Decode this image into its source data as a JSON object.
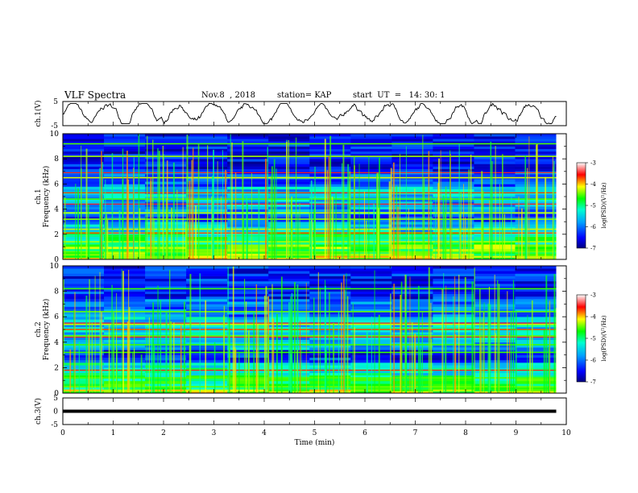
{
  "header": {
    "title": "VLF Spectra",
    "date": "Nov.8  , 2018",
    "station": "station= KAP",
    "start": "start  UT  =   14: 30: 1"
  },
  "chart_data": [
    {
      "type": "line",
      "panel": "ch1-waveform",
      "ylabel": "ch.1(V)",
      "ylim": [
        -5,
        5
      ],
      "y_ticklabels": [
        "5",
        "-5"
      ],
      "xlim": [
        0,
        10
      ],
      "x_extent": 9.8,
      "color": "#000000",
      "series_summary": "noisy waveform oscillating about 0 V with amplitude ~2-3 V"
    },
    {
      "type": "heatmap",
      "panel": "ch1-spectrogram",
      "ylabel": "ch.1\nFrequency (kHz)",
      "ylim": [
        0,
        10
      ],
      "y_ticklabels": [
        "0",
        "2",
        "4",
        "6",
        "8",
        "10"
      ],
      "xlim": [
        0,
        10
      ],
      "x_extent": 9.8,
      "colorbar": {
        "label": "log(PSD)(V²/Hz)",
        "range": [
          -7,
          -3
        ],
        "ticklabels": [
          "-3",
          "-4",
          "-5",
          "-6",
          "-7"
        ]
      },
      "bands": [
        {
          "f": [
            0.0,
            0.3
          ],
          "logpsd": -4.3
        },
        {
          "f": [
            0.3,
            1.2
          ],
          "logpsd": -4.6
        },
        {
          "f": [
            1.2,
            2.2
          ],
          "logpsd": -5.0
        },
        {
          "f": [
            2.2,
            3.0
          ],
          "logpsd": -5.6
        },
        {
          "f": [
            3.0,
            3.6
          ],
          "logpsd": -6.3
        },
        {
          "f": [
            3.6,
            4.6
          ],
          "logpsd": -5.8
        },
        {
          "f": [
            4.6,
            5.8
          ],
          "logpsd": -5.6
        },
        {
          "f": [
            5.8,
            7.0
          ],
          "logpsd": -6.1
        },
        {
          "f": [
            7.0,
            10.0
          ],
          "logpsd": -6.5
        }
      ],
      "lines_khz": [
        0.6,
        1.4,
        2.1,
        2.4,
        3.2,
        3.7,
        4.8,
        5.3,
        6.5,
        8.2,
        9.2
      ],
      "red_lines_khz": [
        2.1,
        4.4,
        5.3,
        6.9
      ]
    },
    {
      "type": "heatmap",
      "panel": "ch2-spectrogram",
      "ylabel": "ch.2\nFrequency (kHz)",
      "ylim": [
        0,
        10
      ],
      "y_ticklabels": [
        "0",
        "2",
        "4",
        "6",
        "8",
        "10"
      ],
      "xlim": [
        0,
        10
      ],
      "x_extent": 9.8,
      "colorbar": {
        "label": "log(PSD)(V²/Hz)",
        "range": [
          -7,
          -3
        ],
        "ticklabels": [
          "-3",
          "-4",
          "-5",
          "-6",
          "-7"
        ]
      },
      "bands": [
        {
          "f": [
            0.0,
            0.3
          ],
          "logpsd": -4.4
        },
        {
          "f": [
            0.3,
            1.4
          ],
          "logpsd": -4.9
        },
        {
          "f": [
            1.4,
            2.4
          ],
          "logpsd": -5.3
        },
        {
          "f": [
            2.4,
            3.4
          ],
          "logpsd": -6.4
        },
        {
          "f": [
            3.4,
            4.6
          ],
          "logpsd": -5.7
        },
        {
          "f": [
            4.6,
            6.0
          ],
          "logpsd": -5.5
        },
        {
          "f": [
            6.0,
            7.4
          ],
          "logpsd": -6.0
        },
        {
          "f": [
            7.4,
            10.0
          ],
          "logpsd": -6.4
        }
      ],
      "lines_khz": [
        0.5,
        1.2,
        1.8,
        3.2,
        3.8,
        4.5,
        5.0,
        5.4,
        6.4,
        8.2
      ],
      "red_lines_khz": [
        1.8,
        4.4,
        5.0,
        5.5
      ]
    },
    {
      "type": "line",
      "panel": "ch3-waveform",
      "ylabel": "ch.3(V)",
      "ylim": [
        -5,
        5
      ],
      "y_ticklabels": [
        "5",
        "0",
        "-5"
      ],
      "xlim": [
        0,
        10
      ],
      "x_extent": 9.8,
      "constant_value": 0,
      "color": "#000000",
      "xlabel": "Time  (min)",
      "x_ticklabels": [
        "0",
        "1",
        "2",
        "3",
        "4",
        "5",
        "6",
        "7",
        "8",
        "9",
        "10"
      ]
    }
  ]
}
